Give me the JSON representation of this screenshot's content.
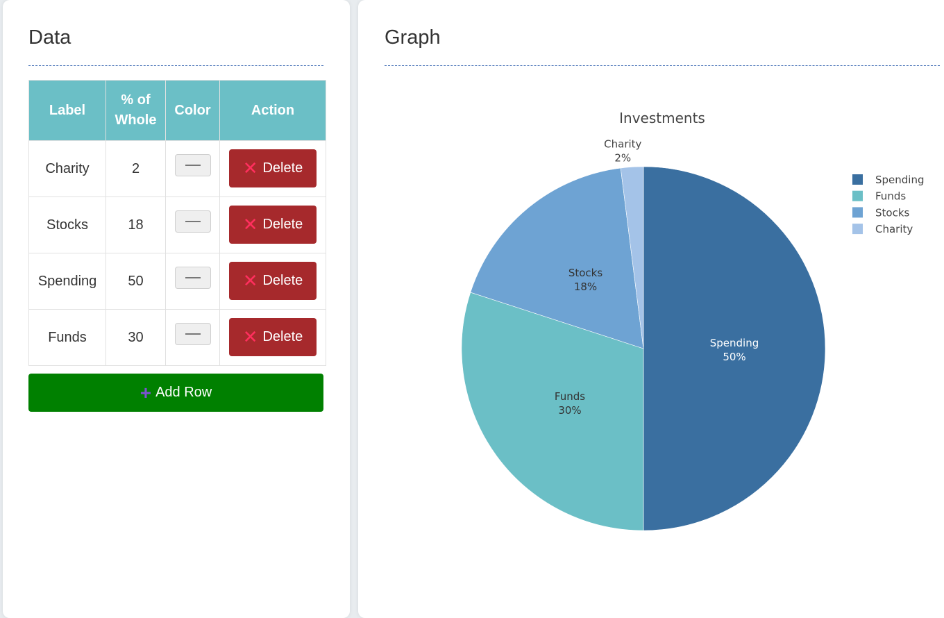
{
  "data_panel": {
    "title": "Data",
    "table": {
      "headers": [
        "Label",
        "% of Whole",
        "Color",
        "Action"
      ],
      "rows": [
        {
          "label": "Charity",
          "value": "2",
          "action": "Delete"
        },
        {
          "label": "Stocks",
          "value": "18",
          "action": "Delete"
        },
        {
          "label": "Spending",
          "value": "50",
          "action": "Delete"
        },
        {
          "label": "Funds",
          "value": "30",
          "action": "Delete"
        }
      ]
    },
    "add_row_label": "Add Row"
  },
  "graph_panel": {
    "title": "Graph"
  },
  "chart_data": {
    "type": "pie",
    "title": "Investments",
    "slices": [
      {
        "label": "Spending",
        "value": 50,
        "percent_label": "50%",
        "color": "#3a6fa0"
      },
      {
        "label": "Funds",
        "value": 30,
        "percent_label": "30%",
        "color": "#6bbfc6"
      },
      {
        "label": "Stocks",
        "value": 18,
        "percent_label": "18%",
        "color": "#6ea3d3"
      },
      {
        "label": "Charity",
        "value": 2,
        "percent_label": "2%",
        "color": "#a4c3e8"
      }
    ],
    "legend": [
      "Spending",
      "Funds",
      "Stocks",
      "Charity"
    ],
    "legend_position": "top-right"
  },
  "colors": {
    "header_bg": "#6bbfc6",
    "delete_bg": "#a6292c",
    "delete_icon": "#ff2f5e",
    "add_bg": "#008000",
    "add_icon": "#7b52d1",
    "divider": "#4a74b8"
  },
  "icons": {
    "delete": "close-icon",
    "add": "plus-icon",
    "color_picker": "minus-icon"
  }
}
